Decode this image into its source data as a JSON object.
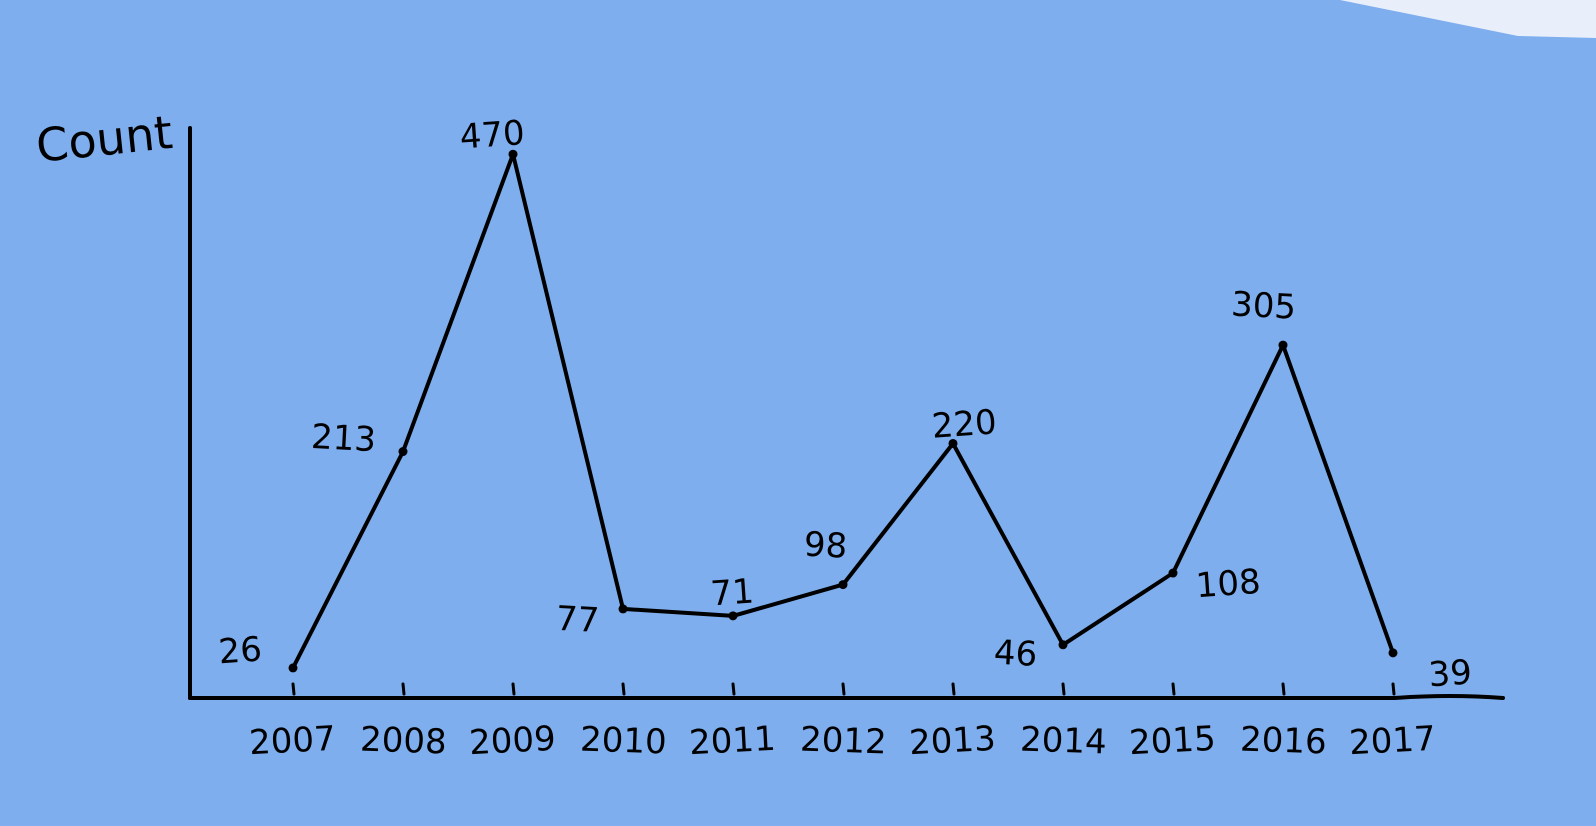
{
  "chart_data": {
    "type": "line",
    "title": "",
    "xlabel": "",
    "ylabel": "Count",
    "categories": [
      "2007",
      "2008",
      "2009",
      "2010",
      "2011",
      "2012",
      "2013",
      "2014",
      "2015",
      "2016",
      "2017"
    ],
    "series": [
      {
        "values": [
          26,
          213,
          470,
          77,
          71,
          98,
          220,
          46,
          108,
          305,
          39
        ],
        "data_labels": [
          "26",
          "213",
          "470",
          "77",
          "71",
          "98",
          "220",
          "46",
          "108",
          "305",
          "39"
        ]
      }
    ],
    "grid": false,
    "legend": "none",
    "style": "hand-drawn",
    "colors": {
      "background": "#7eaeee",
      "ink": "#000000",
      "corner_patch": "#e9eefb"
    }
  }
}
